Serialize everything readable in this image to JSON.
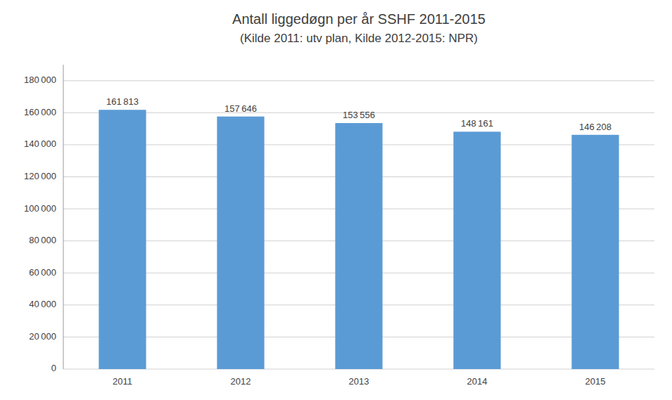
{
  "chart_data": {
    "type": "bar",
    "title": "Antall liggedøgn per år  SSHF 2011-2015",
    "subtitle": "(Kilde 2011:  utv plan, Kilde 2012-2015: NPR)",
    "categories": [
      "2011",
      "2012",
      "2013",
      "2014",
      "2015"
    ],
    "values": [
      161813,
      157646,
      153556,
      148161,
      146208
    ],
    "value_labels": [
      "161 813",
      "157 646",
      "153 556",
      "148 161",
      "146 208"
    ],
    "data_labels": true,
    "color": "#5B9BD5",
    "ylim": [
      0,
      190000
    ],
    "yticks": [
      0,
      {
        "value": 20000,
        "label": "20 000"
      },
      {
        "value": 40000,
        "label": "40 000"
      },
      {
        "value": 60000,
        "label": "60 000"
      },
      {
        "value": 80000,
        "label": "80 000"
      },
      {
        "value": 100000,
        "label": "100 000"
      },
      {
        "value": 120000,
        "label": "120 000"
      },
      {
        "value": 140000,
        "label": "140 000"
      },
      {
        "value": 160000,
        "label": "160 000"
      },
      {
        "value": 180000,
        "label": "180 000"
      }
    ],
    "grid": true
  }
}
